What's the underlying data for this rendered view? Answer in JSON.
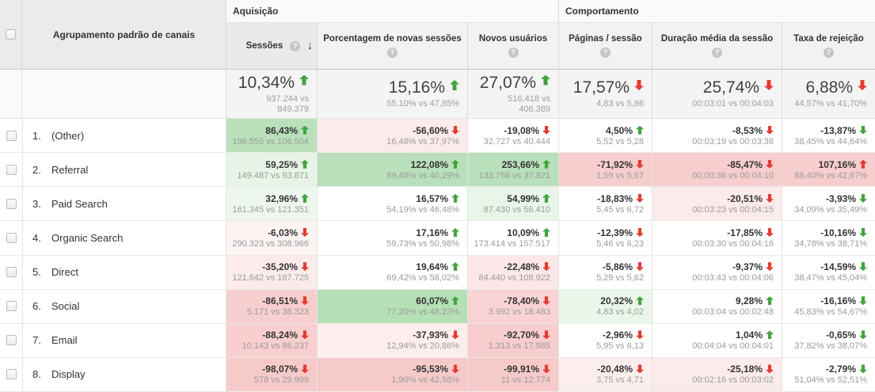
{
  "colors": {
    "positive": "#44a340",
    "negative": "#e23d33"
  },
  "header": {
    "channel_column": "Agrupamento padrão de canais",
    "groups": [
      "Aquisição",
      "Comportamento"
    ],
    "sort_arrow": "↓",
    "metrics": [
      {
        "label": "Sessões",
        "help": "?",
        "sorted": "desc"
      },
      {
        "label": "Porcentagem de novas sessões",
        "help": "?"
      },
      {
        "label": "Novos usuários",
        "help": "?"
      },
      {
        "label": "Páginas / sessão",
        "help": "?"
      },
      {
        "label": "Duração média da sessão",
        "help": "?"
      },
      {
        "label": "Taxa de rejeição",
        "help": "?"
      }
    ]
  },
  "summary": {
    "cells": [
      {
        "change": "10,34%",
        "arrow": {
          "dir": "up",
          "color": "green"
        },
        "vs": "937.244 vs 849.379"
      },
      {
        "change": "15,16%",
        "arrow": {
          "dir": "up",
          "color": "green"
        },
        "vs": "55,10% vs 47,85%"
      },
      {
        "change": "27,07%",
        "arrow": {
          "dir": "up",
          "color": "green"
        },
        "vs": "516.418 vs 406.389"
      },
      {
        "change": "17,57%",
        "arrow": {
          "dir": "down",
          "color": "red"
        },
        "vs": "4,83 vs 5,86"
      },
      {
        "change": "25,74%",
        "arrow": {
          "dir": "down",
          "color": "red"
        },
        "vs": "00:03:01 vs 00:04:03"
      },
      {
        "change": "6,88%",
        "arrow": {
          "dir": "down",
          "color": "red"
        },
        "vs": "44,57% vs 41,70%"
      }
    ]
  },
  "rows": [
    {
      "num": "1.",
      "channel": "(Other)",
      "cells": [
        {
          "change": "86,43%",
          "arrow_dir": "up",
          "arrow_color": "green",
          "vs": "198.555 vs 106.504",
          "bg": "#b9e0ba"
        },
        {
          "change": "-56,60%",
          "arrow_dir": "down",
          "arrow_color": "red",
          "vs": "16,48% vs 37,97%",
          "bg": "#fcebeb"
        },
        {
          "change": "-19,08%",
          "arrow_dir": "down",
          "arrow_color": "red",
          "vs": "32.727 vs 40.444",
          "bg": "#ffffff"
        },
        {
          "change": "4,50%",
          "arrow_dir": "up",
          "arrow_color": "green",
          "vs": "5,52 vs 5,28",
          "bg": "#ffffff"
        },
        {
          "change": "-8,53%",
          "arrow_dir": "down",
          "arrow_color": "red",
          "vs": "00:03:19 vs 00:03:38",
          "bg": "#ffffff"
        },
        {
          "change": "-13,87%",
          "arrow_dir": "down",
          "arrow_color": "green",
          "vs": "38,45% vs 44,64%",
          "bg": "#ffffff"
        }
      ]
    },
    {
      "num": "2.",
      "channel": "Referral",
      "cells": [
        {
          "change": "59,25%",
          "arrow_dir": "up",
          "arrow_color": "green",
          "vs": "149.487 vs 93.871",
          "bg": "#e7f4e7"
        },
        {
          "change": "122,08%",
          "arrow_dir": "up",
          "arrow_color": "green",
          "vs": "89,48% vs 40,29%",
          "bg": "#b9e0ba"
        },
        {
          "change": "253,66%",
          "arrow_dir": "up",
          "arrow_color": "green",
          "vs": "133.756 vs 37.821",
          "bg": "#b9e0ba"
        },
        {
          "change": "-71,92%",
          "arrow_dir": "down",
          "arrow_color": "red",
          "vs": "1,59 vs 5,67",
          "bg": "#f8cdcd"
        },
        {
          "change": "-85,47%",
          "arrow_dir": "down",
          "arrow_color": "red",
          "vs": "00:00:36 vs 00:04:10",
          "bg": "#f8cdcd"
        },
        {
          "change": "107,16%",
          "arrow_dir": "up",
          "arrow_color": "red",
          "vs": "88,40% vs 42,67%",
          "bg": "#f8cdcd"
        }
      ]
    },
    {
      "num": "3.",
      "channel": "Paid Search",
      "cells": [
        {
          "change": "32,96%",
          "arrow_dir": "up",
          "arrow_color": "green",
          "vs": "161.345 vs 121.351",
          "bg": "#eef7ee"
        },
        {
          "change": "16,57%",
          "arrow_dir": "up",
          "arrow_color": "green",
          "vs": "54,19% vs 46,48%",
          "bg": "#ffffff"
        },
        {
          "change": "54,99%",
          "arrow_dir": "up",
          "arrow_color": "green",
          "vs": "87.430 vs 56.410",
          "bg": "#e9f5e9"
        },
        {
          "change": "-18,83%",
          "arrow_dir": "down",
          "arrow_color": "red",
          "vs": "5,45 vs 6,72",
          "bg": "#ffffff"
        },
        {
          "change": "-20,51%",
          "arrow_dir": "down",
          "arrow_color": "red",
          "vs": "00:03:23 vs 00:04:15",
          "bg": "#fcebeb"
        },
        {
          "change": "-3,93%",
          "arrow_dir": "down",
          "arrow_color": "green",
          "vs": "34,09% vs 35,49%",
          "bg": "#ffffff"
        }
      ]
    },
    {
      "num": "4.",
      "channel": "Organic Search",
      "cells": [
        {
          "change": "-6,03%",
          "arrow_dir": "down",
          "arrow_color": "red",
          "vs": "290.323 vs 308.966",
          "bg": "#fdf3f3"
        },
        {
          "change": "17,16%",
          "arrow_dir": "up",
          "arrow_color": "green",
          "vs": "59,73% vs 50,98%",
          "bg": "#ffffff"
        },
        {
          "change": "10,09%",
          "arrow_dir": "up",
          "arrow_color": "green",
          "vs": "173.414 vs 157.517",
          "bg": "#ffffff"
        },
        {
          "change": "-12,39%",
          "arrow_dir": "down",
          "arrow_color": "red",
          "vs": "5,46 vs 6,23",
          "bg": "#ffffff"
        },
        {
          "change": "-17,85%",
          "arrow_dir": "down",
          "arrow_color": "red",
          "vs": "00:03:30 vs 00:04:16",
          "bg": "#ffffff"
        },
        {
          "change": "-10,16%",
          "arrow_dir": "down",
          "arrow_color": "green",
          "vs": "34,78% vs 38,71%",
          "bg": "#ffffff"
        }
      ]
    },
    {
      "num": "5.",
      "channel": "Direct",
      "cells": [
        {
          "change": "-35,20%",
          "arrow_dir": "down",
          "arrow_color": "red",
          "vs": "121.642 vs 187.725",
          "bg": "#fcebeb"
        },
        {
          "change": "19,64%",
          "arrow_dir": "up",
          "arrow_color": "green",
          "vs": "69,42% vs 58,02%",
          "bg": "#ffffff"
        },
        {
          "change": "-22,48%",
          "arrow_dir": "down",
          "arrow_color": "red",
          "vs": "84.440 vs 108.922",
          "bg": "#fbe7e7"
        },
        {
          "change": "-5,86%",
          "arrow_dir": "down",
          "arrow_color": "red",
          "vs": "5,29 vs 5,62",
          "bg": "#ffffff"
        },
        {
          "change": "-9,37%",
          "arrow_dir": "down",
          "arrow_color": "red",
          "vs": "00:03:43 vs 00:04:06",
          "bg": "#ffffff"
        },
        {
          "change": "-14,59%",
          "arrow_dir": "down",
          "arrow_color": "green",
          "vs": "38,47% vs 45,04%",
          "bg": "#ffffff"
        }
      ]
    },
    {
      "num": "6.",
      "channel": "Social",
      "cells": [
        {
          "change": "-86,51%",
          "arrow_dir": "down",
          "arrow_color": "red",
          "vs": "5.171 vs 38.323",
          "bg": "#f8cfcf"
        },
        {
          "change": "60,07%",
          "arrow_dir": "up",
          "arrow_color": "green",
          "vs": "77,20% vs 48,23%",
          "bg": "#b5e0b5"
        },
        {
          "change": "-78,40%",
          "arrow_dir": "down",
          "arrow_color": "red",
          "vs": "3.992 vs 18.483",
          "bg": "#f9d3d3"
        },
        {
          "change": "20,32%",
          "arrow_dir": "up",
          "arrow_color": "green",
          "vs": "4,83 vs 4,02",
          "bg": "#ebf6eb"
        },
        {
          "change": "9,28%",
          "arrow_dir": "up",
          "arrow_color": "green",
          "vs": "00:03:04 vs 00:02:48",
          "bg": "#ffffff"
        },
        {
          "change": "-16,16%",
          "arrow_dir": "down",
          "arrow_color": "green",
          "vs": "45,83% vs 54,67%",
          "bg": "#ffffff"
        }
      ]
    },
    {
      "num": "7.",
      "channel": "Email",
      "cells": [
        {
          "change": "-88,24%",
          "arrow_dir": "down",
          "arrow_color": "red",
          "vs": "10.143 vs 86.237",
          "bg": "#f8cece"
        },
        {
          "change": "-37,93%",
          "arrow_dir": "down",
          "arrow_color": "red",
          "vs": "12,94% vs 20,86%",
          "bg": "#fdeeee"
        },
        {
          "change": "-92,70%",
          "arrow_dir": "down",
          "arrow_color": "red",
          "vs": "1.313 vs 17.985",
          "bg": "#f8cdcd"
        },
        {
          "change": "-2,96%",
          "arrow_dir": "down",
          "arrow_color": "red",
          "vs": "5,95 vs 6,13",
          "bg": "#ffffff"
        },
        {
          "change": "1,04%",
          "arrow_dir": "up",
          "arrow_color": "green",
          "vs": "00:04:04 vs 00:04:01",
          "bg": "#ffffff"
        },
        {
          "change": "-0,65%",
          "arrow_dir": "down",
          "arrow_color": "green",
          "vs": "37,82% vs 38,07%",
          "bg": "#ffffff"
        }
      ]
    },
    {
      "num": "8.",
      "channel": "Display",
      "cells": [
        {
          "change": "-98,07%",
          "arrow_dir": "down",
          "arrow_color": "red",
          "vs": "578 vs 29.999",
          "bg": "#f7caca"
        },
        {
          "change": "-95,53%",
          "arrow_dir": "down",
          "arrow_color": "red",
          "vs": "1,90% vs 42,58%",
          "bg": "#f7caca"
        },
        {
          "change": "-99,91%",
          "arrow_dir": "down",
          "arrow_color": "red",
          "vs": "11 vs 12.774",
          "bg": "#f7caca"
        },
        {
          "change": "-20,48%",
          "arrow_dir": "down",
          "arrow_color": "red",
          "vs": "3,75 vs 4,71",
          "bg": "#fdeeee"
        },
        {
          "change": "-25,18%",
          "arrow_dir": "down",
          "arrow_color": "red",
          "vs": "00:02:16 vs 00:03:02",
          "bg": "#fcebeb"
        },
        {
          "change": "-2,79%",
          "arrow_dir": "down",
          "arrow_color": "green",
          "vs": "51,04% vs 52,51%",
          "bg": "#ffffff"
        }
      ]
    }
  ]
}
